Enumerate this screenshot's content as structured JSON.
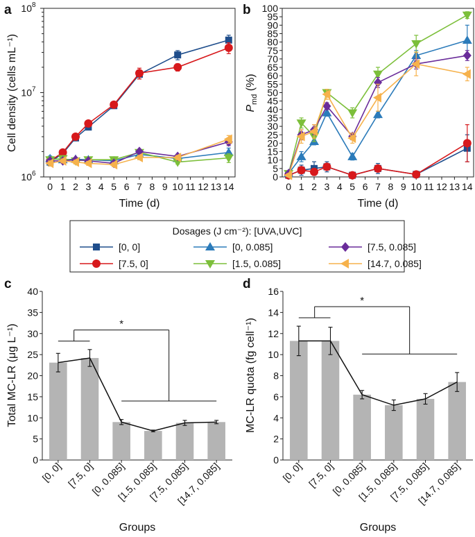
{
  "colors": {
    "s00": "#1f4e8c",
    "s750": "#d7191c",
    "s0085": "#2b7bba",
    "s15085": "#7cbf3a",
    "s75085": "#6a2c9a",
    "s147085": "#f6b24c",
    "bar": "#b4b4b4"
  },
  "legend": {
    "title": "Dosages (J cm⁻²): [UVA,UVC]",
    "entries": [
      {
        "key": "s00",
        "label": "[0, 0]",
        "marker": "square"
      },
      {
        "key": "s0085",
        "label": "[0, 0.085]",
        "marker": "triangle-up"
      },
      {
        "key": "s75085",
        "label": "[7.5, 0.085]",
        "marker": "diamond"
      },
      {
        "key": "s750",
        "label": "[7.5, 0]",
        "marker": "circle"
      },
      {
        "key": "s15085",
        "label": "[1.5, 0.085]",
        "marker": "triangle-down"
      },
      {
        "key": "s147085",
        "label": "[14.7, 0.085]",
        "marker": "triangle-left"
      }
    ]
  },
  "chart_data": [
    {
      "panel": "a",
      "type": "line",
      "yscale": "log",
      "xlabel": "Time (d)",
      "ylabel": "Cell density (cells mL⁻¹)",
      "xlim": [
        -0.5,
        14.5
      ],
      "ylim": [
        1000000,
        100000000
      ],
      "xticks": [
        0,
        1,
        2,
        3,
        4,
        5,
        6,
        7,
        8,
        9,
        10,
        11,
        12,
        13,
        14
      ],
      "ytick_labels": [
        {
          "v": 1000000,
          "b": "10",
          "e": "6"
        },
        {
          "v": 10000000,
          "b": "10",
          "e": "7"
        },
        {
          "v": 100000000,
          "b": "10",
          "e": "8"
        }
      ],
      "x": [
        0,
        1,
        2,
        3,
        5,
        7,
        10,
        14
      ],
      "series": [
        {
          "key": "s00",
          "name": "[0, 0]",
          "values": [
            1500000,
            1900000,
            2900000,
            3900000,
            7000000,
            16500000,
            28000000,
            42000000
          ],
          "err": [
            150000,
            100000,
            150000,
            200000,
            250000,
            2000000,
            3500000,
            6000000
          ]
        },
        {
          "key": "s750",
          "name": "[7.5, 0]",
          "values": [
            1550000,
            1950000,
            3000000,
            4300000,
            7200000,
            17000000,
            20000000,
            34000000
          ],
          "err": [
            150000,
            100000,
            150000,
            200000,
            250000,
            2500000,
            2000000,
            5000000
          ]
        },
        {
          "key": "s0085",
          "name": "[0, 0.085]",
          "values": [
            1650000,
            1600000,
            1620000,
            1600000,
            1550000,
            1850000,
            1650000,
            1950000
          ],
          "err": [
            120000,
            80000,
            80000,
            80000,
            80000,
            100000,
            80000,
            250000
          ]
        },
        {
          "key": "s15085",
          "name": "[1.5, 0.085]",
          "values": [
            1600000,
            1650000,
            1550000,
            1600000,
            1600000,
            1950000,
            1500000,
            1680000
          ],
          "err": [
            120000,
            80000,
            80000,
            80000,
            80000,
            100000,
            80000,
            200000
          ]
        },
        {
          "key": "s75085",
          "name": "[7.5, 0.085]",
          "values": [
            1550000,
            1550000,
            1600000,
            1550000,
            1450000,
            2000000,
            1750000,
            2600000
          ],
          "err": [
            100000,
            80000,
            80000,
            80000,
            80000,
            100000,
            100000,
            250000
          ]
        },
        {
          "key": "s147085",
          "name": "[14.7, 0.085]",
          "values": [
            1450000,
            1550000,
            1500000,
            1450000,
            1400000,
            1700000,
            1700000,
            2800000
          ],
          "err": [
            100000,
            80000,
            80000,
            80000,
            80000,
            100000,
            100000,
            300000
          ]
        }
      ]
    },
    {
      "panel": "b",
      "type": "line",
      "xlabel": "Time (d)",
      "ylabel_main": "P",
      "ylabel_sub": "md",
      "ylabel_rest": " (%)",
      "xlim": [
        -0.5,
        14.5
      ],
      "ylim": [
        0,
        100
      ],
      "xticks": [
        0,
        1,
        2,
        3,
        4,
        5,
        6,
        7,
        8,
        9,
        10,
        11,
        12,
        13,
        14
      ],
      "yticks": [
        0,
        5,
        10,
        15,
        20,
        25,
        30,
        35,
        40,
        45,
        50,
        55,
        60,
        65,
        70,
        75,
        80,
        85,
        90,
        95,
        100
      ],
      "x": [
        0,
        1,
        2,
        3,
        5,
        7,
        10,
        14
      ],
      "series": [
        {
          "key": "s00",
          "name": "[0, 0]",
          "values": [
            1,
            4,
            5,
            6,
            1,
            5,
            1.5,
            17
          ],
          "err": [
            1,
            3,
            4,
            3,
            1,
            3,
            1,
            8
          ]
        },
        {
          "key": "s750",
          "name": "[7.5, 0]",
          "values": [
            1,
            4,
            3,
            6,
            1,
            5,
            1.5,
            20
          ],
          "err": [
            1,
            2,
            2,
            2,
            1,
            2,
            1,
            11
          ]
        },
        {
          "key": "s0085",
          "name": "[0, 0.085]",
          "values": [
            2,
            12,
            21,
            38,
            12,
            37,
            72,
            81
          ],
          "err": [
            1,
            3,
            2,
            2,
            2,
            2,
            3,
            9
          ]
        },
        {
          "key": "s15085",
          "name": "[1.5, 0.085]",
          "values": [
            2,
            32,
            24,
            50,
            38,
            61,
            79,
            96
          ],
          "err": [
            1,
            3,
            3,
            2,
            3,
            4,
            5,
            2
          ]
        },
        {
          "key": "s75085",
          "name": "[7.5, 0.085]",
          "values": [
            2,
            25,
            28,
            42,
            24,
            56,
            67,
            72
          ],
          "err": [
            1,
            3,
            3,
            2,
            2,
            3,
            3,
            3
          ]
        },
        {
          "key": "s147085",
          "name": "[14.7, 0.085]",
          "values": [
            1,
            24,
            27,
            49,
            23,
            47,
            67,
            61
          ],
          "err": [
            1,
            4,
            4,
            3,
            3,
            8,
            7,
            4
          ]
        }
      ]
    },
    {
      "panel": "c",
      "type": "bar",
      "xlabel": "Groups",
      "ylabel": "Total MC-LR (μg L⁻¹)",
      "categories": [
        "[0, 0]",
        "[7.5, 0]",
        "[0, 0.085]",
        "[1.5, 0.085]",
        "[7.5, 0.085]",
        "[14.7, 0.085]"
      ],
      "values": [
        23.1,
        24.2,
        9.0,
        6.9,
        8.8,
        9.0
      ],
      "err": [
        2.2,
        2.0,
        0.6,
        0.2,
        0.6,
        0.4
      ],
      "ylim": [
        0,
        40
      ],
      "yticks": [
        0,
        5,
        10,
        15,
        20,
        25,
        30,
        35,
        40
      ],
      "significance": "*"
    },
    {
      "panel": "d",
      "type": "bar",
      "xlabel": "Groups",
      "ylabel": "MC-LR quota (fg cell⁻¹)",
      "categories": [
        "[0, 0]",
        "[7.5, 0]",
        "[0, 0.085]",
        "[1.5, 0.085]",
        "[7.5, 0.085]",
        "[14.7, 0.085]"
      ],
      "values": [
        11.3,
        11.3,
        6.2,
        5.2,
        5.8,
        7.4
      ],
      "err": [
        1.4,
        1.3,
        0.4,
        0.5,
        0.5,
        0.9
      ],
      "ylim": [
        0,
        16
      ],
      "yticks": [
        0,
        2,
        4,
        6,
        8,
        10,
        12,
        14,
        16
      ],
      "significance": "*"
    }
  ]
}
